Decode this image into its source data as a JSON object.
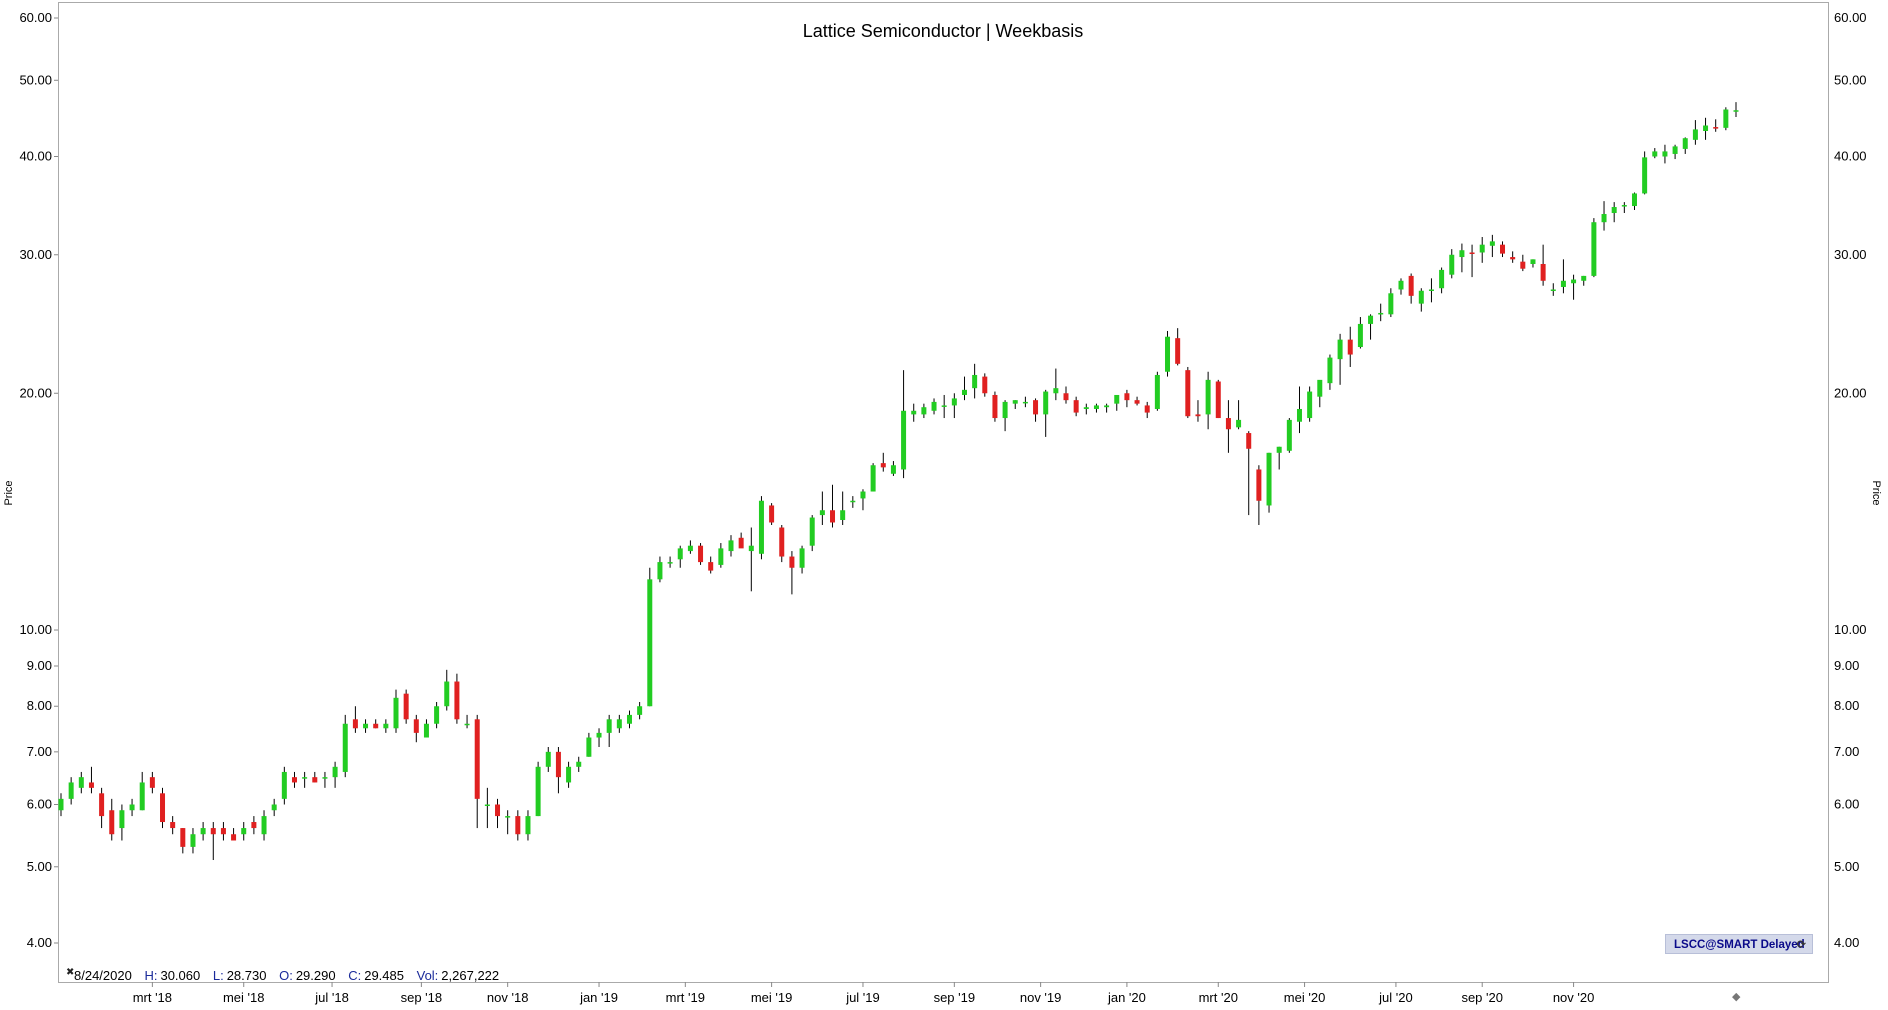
{
  "chart_data": {
    "type": "candlestick",
    "title": "Lattice Semiconductor | Weekbasis",
    "ylabel": "Price",
    "yscale": "log",
    "ylim": [
      3.75,
      63
    ],
    "y_ticks": [
      "60.00",
      "50.00",
      "40.00",
      "30.00",
      "20.00",
      "10.00",
      "9.00",
      "8.00",
      "7.00",
      "6.00",
      "5.00",
      "4.00"
    ],
    "x_ticks": [
      "mrt '18",
      "mei '18",
      "jul '18",
      "sep '18",
      "nov '18",
      "jan '19",
      "mrt '19",
      "mei '19",
      "jul '19",
      "sep '19",
      "nov '19",
      "jan '20",
      "mrt '20",
      "mei '20",
      "jul '20",
      "sep '20",
      "nov '20"
    ],
    "up_color": "#22cc22",
    "down_color": "#e02020",
    "wick_color": "#000000",
    "candles": [
      [
        5.9,
        6.2,
        5.8,
        6.1
      ],
      [
        6.1,
        6.5,
        6.0,
        6.4
      ],
      [
        6.3,
        6.6,
        6.2,
        6.5
      ],
      [
        6.4,
        6.7,
        6.2,
        6.3
      ],
      [
        6.2,
        6.3,
        5.6,
        5.8
      ],
      [
        5.9,
        6.1,
        5.4,
        5.5
      ],
      [
        5.6,
        6.0,
        5.4,
        5.9
      ],
      [
        5.9,
        6.1,
        5.8,
        6.0
      ],
      [
        5.9,
        6.6,
        5.9,
        6.4
      ],
      [
        6.5,
        6.6,
        6.2,
        6.3
      ],
      [
        6.2,
        6.3,
        5.6,
        5.7
      ],
      [
        5.7,
        5.8,
        5.5,
        5.6
      ],
      [
        5.6,
        5.6,
        5.2,
        5.3
      ],
      [
        5.3,
        5.6,
        5.2,
        5.5
      ],
      [
        5.5,
        5.7,
        5.4,
        5.6
      ],
      [
        5.6,
        5.7,
        5.1,
        5.5
      ],
      [
        5.6,
        5.7,
        5.4,
        5.5
      ],
      [
        5.5,
        5.6,
        5.4,
        5.4
      ],
      [
        5.5,
        5.7,
        5.4,
        5.6
      ],
      [
        5.7,
        5.8,
        5.5,
        5.6
      ],
      [
        5.5,
        5.9,
        5.4,
        5.8
      ],
      [
        5.9,
        6.1,
        5.8,
        6.0
      ],
      [
        6.1,
        6.7,
        6.0,
        6.6
      ],
      [
        6.5,
        6.6,
        6.3,
        6.4
      ],
      [
        6.5,
        6.6,
        6.3,
        6.5
      ],
      [
        6.5,
        6.6,
        6.4,
        6.4
      ],
      [
        6.5,
        6.6,
        6.3,
        6.5
      ],
      [
        6.5,
        6.8,
        6.3,
        6.7
      ],
      [
        6.6,
        7.8,
        6.5,
        7.6
      ],
      [
        7.7,
        8.0,
        7.4,
        7.5
      ],
      [
        7.5,
        7.7,
        7.4,
        7.6
      ],
      [
        7.6,
        7.7,
        7.5,
        7.5
      ],
      [
        7.5,
        7.7,
        7.4,
        7.6
      ],
      [
        7.5,
        8.4,
        7.4,
        8.2
      ],
      [
        8.3,
        8.4,
        7.6,
        7.7
      ],
      [
        7.7,
        7.8,
        7.2,
        7.4
      ],
      [
        7.3,
        7.7,
        7.3,
        7.6
      ],
      [
        7.6,
        8.1,
        7.5,
        8.0
      ],
      [
        8.0,
        8.9,
        7.9,
        8.6
      ],
      [
        8.6,
        8.8,
        7.6,
        7.7
      ],
      [
        7.6,
        7.8,
        7.5,
        7.6
      ],
      [
        7.7,
        7.8,
        5.6,
        6.1
      ],
      [
        6.0,
        6.3,
        5.6,
        6.0
      ],
      [
        6.0,
        6.1,
        5.6,
        5.8
      ],
      [
        5.8,
        5.9,
        5.5,
        5.8
      ],
      [
        5.8,
        5.9,
        5.4,
        5.5
      ],
      [
        5.5,
        5.9,
        5.4,
        5.8
      ],
      [
        5.8,
        6.8,
        5.8,
        6.7
      ],
      [
        6.7,
        7.1,
        6.6,
        7.0
      ],
      [
        7.0,
        7.1,
        6.2,
        6.5
      ],
      [
        6.4,
        6.8,
        6.3,
        6.7
      ],
      [
        6.7,
        6.9,
        6.6,
        6.8
      ],
      [
        6.9,
        7.4,
        6.9,
        7.3
      ],
      [
        7.3,
        7.5,
        7.1,
        7.4
      ],
      [
        7.4,
        7.8,
        7.1,
        7.7
      ],
      [
        7.5,
        7.8,
        7.4,
        7.7
      ],
      [
        7.6,
        7.9,
        7.5,
        7.8
      ],
      [
        7.8,
        8.1,
        7.7,
        8.0
      ],
      [
        8.0,
        12.0,
        8.0,
        11.6
      ],
      [
        11.6,
        12.4,
        11.5,
        12.2
      ],
      [
        12.2,
        12.4,
        12.0,
        12.2
      ],
      [
        12.3,
        12.8,
        12.0,
        12.7
      ],
      [
        12.6,
        13.0,
        12.5,
        12.8
      ],
      [
        12.8,
        12.9,
        12.1,
        12.2
      ],
      [
        12.2,
        12.4,
        11.8,
        11.9
      ],
      [
        12.1,
        12.9,
        12.0,
        12.7
      ],
      [
        12.6,
        13.2,
        12.4,
        13.0
      ],
      [
        13.1,
        13.3,
        12.8,
        12.7
      ],
      [
        12.6,
        13.5,
        11.2,
        12.8
      ],
      [
        12.5,
        14.8,
        12.3,
        14.6
      ],
      [
        14.4,
        14.5,
        13.6,
        13.7
      ],
      [
        13.5,
        13.6,
        12.2,
        12.4
      ],
      [
        12.4,
        12.6,
        11.1,
        12.0
      ],
      [
        12.0,
        12.8,
        11.8,
        12.7
      ],
      [
        12.8,
        14.0,
        12.6,
        13.9
      ],
      [
        14.0,
        15.0,
        13.6,
        14.2
      ],
      [
        14.2,
        15.3,
        13.5,
        13.7
      ],
      [
        13.8,
        15.0,
        13.6,
        14.2
      ],
      [
        14.6,
        14.8,
        14.3,
        14.6
      ],
      [
        14.7,
        15.1,
        14.2,
        15.0
      ],
      [
        15.0,
        16.3,
        15.0,
        16.2
      ],
      [
        16.3,
        16.8,
        15.9,
        16.1
      ],
      [
        15.8,
        16.4,
        15.7,
        16.2
      ],
      [
        16.0,
        21.4,
        15.6,
        19.0
      ],
      [
        18.8,
        19.4,
        18.4,
        19.0
      ],
      [
        18.8,
        19.4,
        18.6,
        19.2
      ],
      [
        19.0,
        19.7,
        18.8,
        19.5
      ],
      [
        19.3,
        19.9,
        18.6,
        19.3
      ],
      [
        19.3,
        20.0,
        18.6,
        19.7
      ],
      [
        19.9,
        21.0,
        19.6,
        20.2
      ],
      [
        20.3,
        21.8,
        19.7,
        21.1
      ],
      [
        21.0,
        21.2,
        19.8,
        20.0
      ],
      [
        19.9,
        20.1,
        18.4,
        18.6
      ],
      [
        18.6,
        19.6,
        17.9,
        19.5
      ],
      [
        19.4,
        19.6,
        19.1,
        19.6
      ],
      [
        19.5,
        19.8,
        19.2,
        19.5
      ],
      [
        19.6,
        19.7,
        18.4,
        18.8
      ],
      [
        18.8,
        20.2,
        17.6,
        20.1
      ],
      [
        20.0,
        21.5,
        19.6,
        20.3
      ],
      [
        20.0,
        20.4,
        19.4,
        19.6
      ],
      [
        19.6,
        19.8,
        18.7,
        18.9
      ],
      [
        19.1,
        19.4,
        18.8,
        19.2
      ],
      [
        19.1,
        19.4,
        18.9,
        19.3
      ],
      [
        19.2,
        19.4,
        18.9,
        19.3
      ],
      [
        19.4,
        19.8,
        19.0,
        19.9
      ],
      [
        20.0,
        20.2,
        19.2,
        19.6
      ],
      [
        19.6,
        19.8,
        19.3,
        19.4
      ],
      [
        19.3,
        19.5,
        18.6,
        18.9
      ],
      [
        19.1,
        21.3,
        19.0,
        21.1
      ],
      [
        21.3,
        24.0,
        21.0,
        23.6
      ],
      [
        23.5,
        24.2,
        21.7,
        21.8
      ],
      [
        21.4,
        21.6,
        18.6,
        18.7
      ],
      [
        18.8,
        19.6,
        18.4,
        18.7
      ],
      [
        18.8,
        21.3,
        18.0,
        20.8
      ],
      [
        20.7,
        20.8,
        18.6,
        18.6
      ],
      [
        18.6,
        19.6,
        16.8,
        18.0
      ],
      [
        18.1,
        19.6,
        18.0,
        18.5
      ],
      [
        17.8,
        17.9,
        14.0,
        17.0
      ],
      [
        16.0,
        16.2,
        13.6,
        14.6
      ],
      [
        14.4,
        16.8,
        14.1,
        16.8
      ],
      [
        16.8,
        17.1,
        16.0,
        17.1
      ],
      [
        16.9,
        18.6,
        16.8,
        18.5
      ],
      [
        18.4,
        20.4,
        17.8,
        19.1
      ],
      [
        18.6,
        20.4,
        18.4,
        20.1
      ],
      [
        19.8,
        20.7,
        19.2,
        20.8
      ],
      [
        20.6,
        22.4,
        20.2,
        22.2
      ],
      [
        22.1,
        23.8,
        20.5,
        23.4
      ],
      [
        23.4,
        24.3,
        21.6,
        22.4
      ],
      [
        22.9,
        25.0,
        22.8,
        24.5
      ],
      [
        24.5,
        25.2,
        23.4,
        25.1
      ],
      [
        25.2,
        26.0,
        24.7,
        25.3
      ],
      [
        25.2,
        27.2,
        25.0,
        26.8
      ],
      [
        27.1,
        28.0,
        26.7,
        27.8
      ],
      [
        28.2,
        28.4,
        26.0,
        26.6
      ],
      [
        26.0,
        27.2,
        25.4,
        27.0
      ],
      [
        27.0,
        28.0,
        26.1,
        27.1
      ],
      [
        27.2,
        28.9,
        26.8,
        28.7
      ],
      [
        28.3,
        30.5,
        28.0,
        30.0
      ],
      [
        29.8,
        31.0,
        28.5,
        30.4
      ],
      [
        30.2,
        30.9,
        28.1,
        30.1
      ],
      [
        30.2,
        31.6,
        29.3,
        30.9
      ],
      [
        30.8,
        31.8,
        29.8,
        31.2
      ],
      [
        30.9,
        31.2,
        29.8,
        30.1
      ],
      [
        29.8,
        30.3,
        29.3,
        29.6
      ],
      [
        29.4,
        30.0,
        28.6,
        28.8
      ],
      [
        29.2,
        29.6,
        28.9,
        29.6
      ],
      [
        29.2,
        30.9,
        27.4,
        27.8
      ],
      [
        27.1,
        27.6,
        26.6,
        27.1
      ],
      [
        27.3,
        29.6,
        26.8,
        27.8
      ],
      [
        27.6,
        28.3,
        26.3,
        27.9
      ],
      [
        27.8,
        28.2,
        27.4,
        28.2
      ],
      [
        28.2,
        33.4,
        28.1,
        33.0
      ],
      [
        33.0,
        35.1,
        32.2,
        33.8
      ],
      [
        33.9,
        35.0,
        33.0,
        34.5
      ],
      [
        34.6,
        35.0,
        33.9,
        34.7
      ],
      [
        34.6,
        36.0,
        34.2,
        35.9
      ],
      [
        35.9,
        40.6,
        35.8,
        39.9
      ],
      [
        40.0,
        41.0,
        39.8,
        40.6
      ],
      [
        40.0,
        41.4,
        39.2,
        40.6
      ],
      [
        40.3,
        41.4,
        39.7,
        41.2
      ],
      [
        40.9,
        42.3,
        40.3,
        42.2
      ],
      [
        42.0,
        44.5,
        41.4,
        43.3
      ],
      [
        43.1,
        44.8,
        42.0,
        43.8
      ],
      [
        43.6,
        44.6,
        43.0,
        43.4
      ],
      [
        43.5,
        46.2,
        43.2,
        45.9
      ],
      [
        45.6,
        46.9,
        44.9,
        45.8
      ]
    ],
    "info": {
      "date": "8/24/2020",
      "high_label": "H:",
      "high": "30.060",
      "low_label": "L:",
      "low": "28.730",
      "open_label": "O:",
      "open": "29.290",
      "close_label": "C:",
      "close": "29.485",
      "vol_label": "Vol:",
      "vol": "2,267,222"
    },
    "badge": "LSCC@SMART Delayed"
  }
}
